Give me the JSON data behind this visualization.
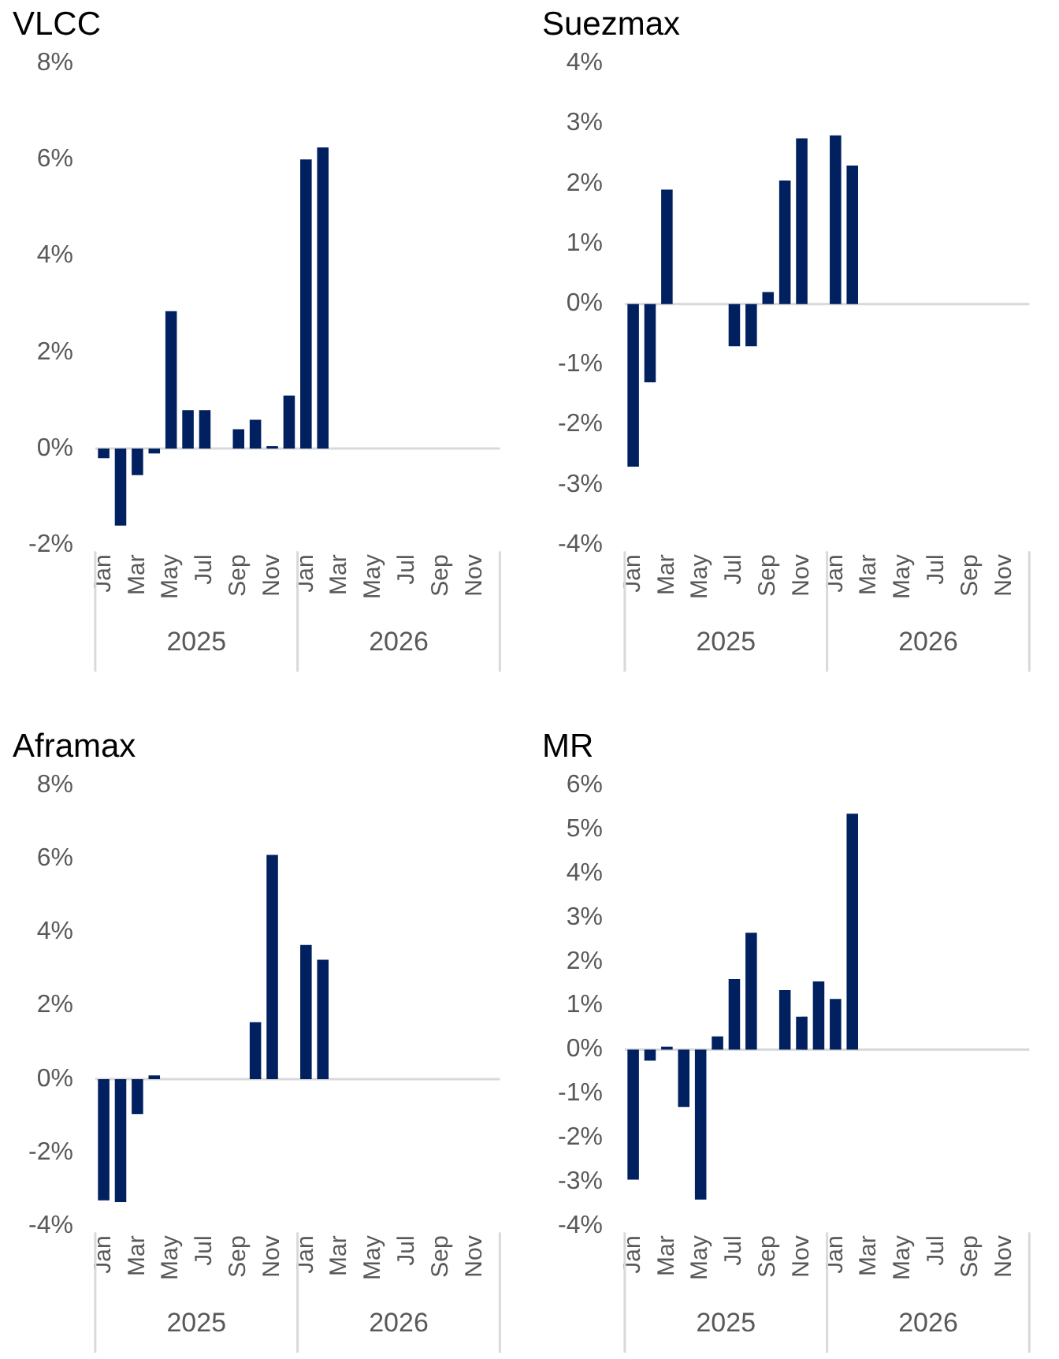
{
  "chart_data": [
    {
      "type": "bar",
      "title": "VLCC",
      "categories": [
        "Jan",
        null,
        "Mar",
        null,
        "May",
        null,
        "Jul",
        null,
        "Sep",
        null,
        "Nov",
        null,
        "Jan",
        null,
        "Mar",
        null,
        "May",
        null,
        "Jul",
        null,
        "Sep",
        null,
        "Nov",
        null
      ],
      "color": "#002060",
      "values": [
        -0.2,
        -1.6,
        -0.55,
        -0.1,
        2.85,
        0.8,
        0.8,
        null,
        0.4,
        0.6,
        0.05,
        1.1,
        6.0,
        6.25,
        null,
        null,
        null,
        null,
        null,
        null,
        null,
        null,
        null,
        null
      ],
      "ylim": [
        -2,
        8
      ],
      "yticks": [
        {
          "value": -2,
          "label": "-2%"
        },
        {
          "value": 0,
          "label": "0%"
        },
        {
          "value": 2,
          "label": "2%"
        },
        {
          "value": 4,
          "label": "4%"
        },
        {
          "value": 6,
          "label": "6%"
        },
        {
          "value": 8,
          "label": "8%"
        }
      ],
      "annotations": [
        "2025",
        "2026"
      ],
      "legend": false
    },
    {
      "type": "bar",
      "title": "Suezmax",
      "categories": [
        "Jan",
        null,
        "Mar",
        null,
        "May",
        null,
        "Jul",
        null,
        "Sep",
        null,
        "Nov",
        null,
        "Jan",
        null,
        "Mar",
        null,
        "May",
        null,
        "Jul",
        null,
        "Sep",
        null,
        "Nov",
        null
      ],
      "color": "#002060",
      "values": [
        -2.7,
        -1.3,
        1.9,
        null,
        null,
        null,
        -0.7,
        -0.7,
        0.2,
        2.05,
        2.75,
        null,
        2.8,
        2.3,
        null,
        null,
        null,
        null,
        null,
        null,
        null,
        null,
        null,
        null
      ],
      "ylim": [
        -4,
        4
      ],
      "yticks": [
        {
          "value": -4,
          "label": "-4%"
        },
        {
          "value": -3,
          "label": "-3%"
        },
        {
          "value": -2,
          "label": "-2%"
        },
        {
          "value": -1,
          "label": "-1%"
        },
        {
          "value": 0,
          "label": "0%"
        },
        {
          "value": 1,
          "label": "1%"
        },
        {
          "value": 2,
          "label": "2%"
        },
        {
          "value": 3,
          "label": "3%"
        },
        {
          "value": 4,
          "label": "4%"
        }
      ],
      "annotations": [
        "2025",
        "2026"
      ],
      "legend": false
    },
    {
      "type": "bar",
      "title": "Aframax",
      "categories": [
        "Jan",
        null,
        "Mar",
        null,
        "May",
        null,
        "Jul",
        null,
        "Sep",
        null,
        "Nov",
        null,
        "Jan",
        null,
        "Mar",
        null,
        "May",
        null,
        "Jul",
        null,
        "Sep",
        null,
        "Nov",
        null
      ],
      "color": "#002060",
      "values": [
        -3.3,
        -3.35,
        -0.95,
        0.1,
        null,
        null,
        null,
        null,
        null,
        1.55,
        6.1,
        null,
        3.65,
        3.25,
        null,
        null,
        null,
        null,
        null,
        null,
        null,
        null,
        null,
        null
      ],
      "ylim": [
        -4,
        8
      ],
      "yticks": [
        {
          "value": -4,
          "label": "-4%"
        },
        {
          "value": -2,
          "label": "-2%"
        },
        {
          "value": 0,
          "label": "0%"
        },
        {
          "value": 2,
          "label": "2%"
        },
        {
          "value": 4,
          "label": "4%"
        },
        {
          "value": 6,
          "label": "6%"
        },
        {
          "value": 8,
          "label": "8%"
        }
      ],
      "annotations": [
        "2025",
        "2026"
      ],
      "legend": false
    },
    {
      "type": "bar",
      "title": "MR",
      "categories": [
        "Jan",
        null,
        "Mar",
        null,
        "May",
        null,
        "Jul",
        null,
        "Sep",
        null,
        "Nov",
        null,
        "Jan",
        null,
        "Mar",
        null,
        "May",
        null,
        "Jul",
        null,
        "Sep",
        null,
        "Nov",
        null
      ],
      "color": "#002060",
      "values": [
        -2.95,
        -0.25,
        0.07,
        -1.3,
        -3.4,
        0.3,
        1.6,
        2.65,
        null,
        1.35,
        0.75,
        1.55,
        1.15,
        5.35,
        null,
        null,
        null,
        null,
        null,
        null,
        null,
        null,
        null,
        null
      ],
      "ylim": [
        -4,
        6
      ],
      "yticks": [
        {
          "value": -4,
          "label": "-4%"
        },
        {
          "value": -3,
          "label": "-3%"
        },
        {
          "value": -2,
          "label": "-2%"
        },
        {
          "value": -1,
          "label": "-1%"
        },
        {
          "value": 0,
          "label": "0%"
        },
        {
          "value": 1,
          "label": "1%"
        },
        {
          "value": 2,
          "label": "2%"
        },
        {
          "value": 3,
          "label": "3%"
        },
        {
          "value": 4,
          "label": "4%"
        },
        {
          "value": 5,
          "label": "5%"
        },
        {
          "value": 6,
          "label": "6%"
        }
      ],
      "annotations": [
        "2025",
        "2026"
      ],
      "legend": false
    }
  ]
}
